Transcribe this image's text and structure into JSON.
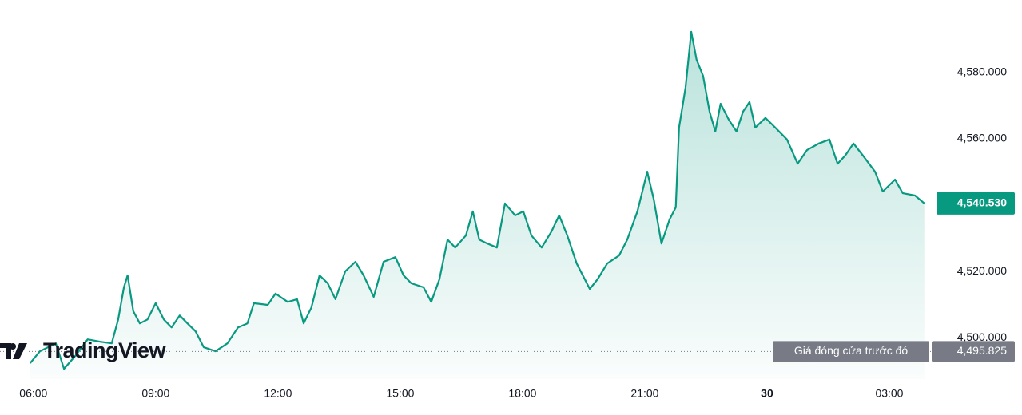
{
  "chart_data": {
    "type": "area",
    "watermark": "TradingView",
    "x": [
      5.92,
      6.16,
      6.55,
      6.75,
      7.04,
      7.33,
      7.63,
      7.92,
      8.08,
      8.22,
      8.31,
      8.45,
      8.61,
      8.8,
      9.0,
      9.2,
      9.39,
      9.59,
      9.78,
      9.98,
      10.18,
      10.47,
      10.76,
      11.02,
      11.25,
      11.41,
      11.75,
      11.94,
      12.24,
      12.47,
      12.63,
      12.82,
      13.02,
      13.22,
      13.41,
      13.65,
      13.9,
      14.1,
      14.35,
      14.59,
      14.88,
      15.08,
      15.27,
      15.57,
      15.76,
      15.96,
      16.16,
      16.35,
      16.61,
      16.78,
      16.94,
      17.14,
      17.37,
      17.57,
      17.82,
      18.02,
      18.22,
      18.47,
      18.71,
      18.9,
      19.1,
      19.33,
      19.65,
      19.84,
      20.08,
      20.37,
      20.57,
      20.82,
      21.06,
      21.22,
      21.41,
      21.61,
      21.76,
      21.84,
      22.0,
      22.14,
      22.27,
      22.43,
      22.59,
      22.73,
      22.86,
      23.06,
      23.25,
      23.41,
      23.57,
      23.71,
      23.96,
      24.2,
      24.49,
      24.75,
      24.98,
      25.27,
      25.53,
      25.73,
      25.92,
      26.12,
      26.35,
      26.65,
      26.84,
      27.14,
      27.33,
      27.63,
      27.86
    ],
    "series": [
      {
        "color": "#089981",
        "values": [
          4492.3,
          4495.9,
          4498.3,
          4490.6,
          4494.7,
          4499.5,
          4498.8,
          4498.3,
          4505.5,
          4515.2,
          4518.8,
          4508.0,
          4504.3,
          4505.5,
          4510.4,
          4505.5,
          4503.1,
          4506.7,
          4504.3,
          4501.9,
          4497.1,
          4495.9,
          4498.3,
          4503.1,
          4504.3,
          4510.4,
          4509.9,
          4513.3,
          4510.8,
          4511.6,
          4504.3,
          4509.1,
          4518.8,
          4516.4,
          4511.6,
          4520.0,
          4522.9,
          4518.8,
          4512.3,
          4522.9,
          4524.3,
          4518.8,
          4516.4,
          4515.2,
          4510.8,
          4517.6,
          4529.6,
          4527.2,
          4530.8,
          4538.1,
          4529.6,
          4528.4,
          4527.2,
          4540.5,
          4536.9,
          4538.1,
          4530.8,
          4527.2,
          4532.0,
          4536.9,
          4530.8,
          4522.4,
          4514.7,
          4517.6,
          4522.4,
          4524.8,
          4529.6,
          4538.1,
          4550.1,
          4541.7,
          4528.4,
          4535.7,
          4539.3,
          4563.4,
          4575.4,
          4592.3,
          4583.9,
          4579.0,
          4568.2,
          4562.2,
          4570.6,
          4565.8,
          4562.2,
          4568.2,
          4571.1,
          4563.4,
          4566.3,
          4563.4,
          4559.8,
          4552.5,
          4556.6,
          4558.6,
          4559.8,
          4552.5,
          4555.0,
          4558.6,
          4555.0,
          4550.1,
          4544.1,
          4547.7,
          4543.6,
          4542.9,
          4540.53
        ]
      }
    ],
    "xlim": [
      5.18,
      28.02
    ],
    "xticks": [
      {
        "value": 6,
        "label": "06:00"
      },
      {
        "value": 9,
        "label": "09:00"
      },
      {
        "value": 12,
        "label": "12:00"
      },
      {
        "value": 15,
        "label": "15:00"
      },
      {
        "value": 18,
        "label": "18:00"
      },
      {
        "value": 21,
        "label": "21:00"
      },
      {
        "value": 24,
        "label": "30",
        "bold": true
      },
      {
        "value": 27,
        "label": "03:00"
      }
    ],
    "ylim": [
      4487.5,
      4601.9
    ],
    "yticks": [
      {
        "value": 4500,
        "label": "4,500.000"
      },
      {
        "value": 4520,
        "label": "4,520.000"
      },
      {
        "value": 4560,
        "label": "4,560.000"
      },
      {
        "value": 4580,
        "label": "4,580.000"
      }
    ],
    "last_price": {
      "value": 4540.53,
      "label": "4,540.530",
      "color": "#089981"
    },
    "previous_close": {
      "label": "Giá đóng cửa trước đó",
      "value": 4495.825,
      "value_label": "4,495.825",
      "color": "#787b86"
    }
  }
}
